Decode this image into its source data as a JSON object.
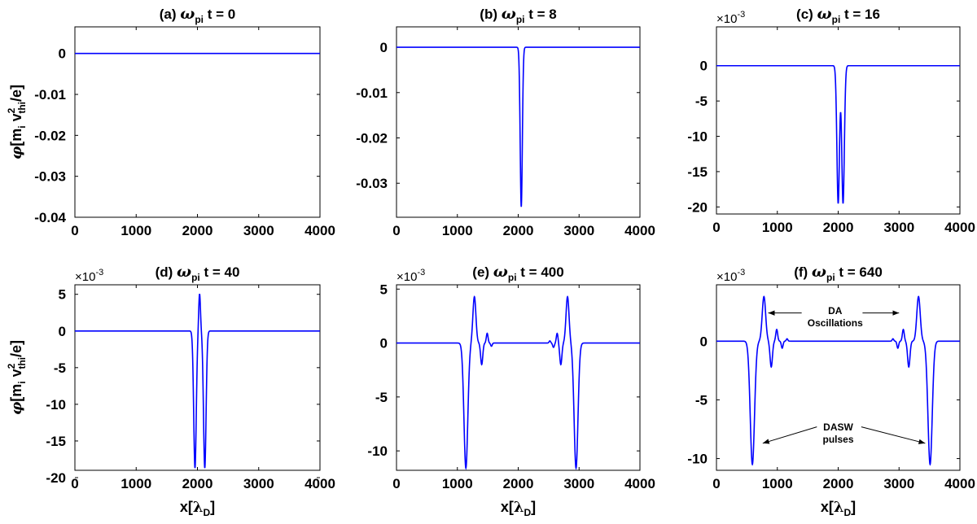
{
  "chart_data": [
    {
      "type": "line",
      "panel": "a",
      "title": "(a) ω_pi t = 0",
      "title_parts": {
        "prefix": "(a) ",
        "symbol": "ω",
        "sub": "pi",
        "suffix": " t = 0"
      },
      "xlim": [
        0,
        4000
      ],
      "ylim": [
        -0.04,
        0.0065
      ],
      "xticks": [
        0,
        1000,
        2000,
        3000,
        4000
      ],
      "yticks": [
        0,
        -0.01,
        -0.02,
        -0.03,
        -0.04
      ],
      "ytick_labels": [
        "0",
        "-0.01",
        "-0.02",
        "-0.03",
        "-0.04"
      ],
      "multiplier": "",
      "ylabel": "φ[m_i v_thi^2/e]",
      "xlabel": "",
      "series": [
        {
          "color": "#0000ff",
          "components": []
        }
      ]
    },
    {
      "type": "line",
      "panel": "b",
      "title": "(b) ω_pi t = 8",
      "title_parts": {
        "prefix": "(b) ",
        "symbol": "ω",
        "sub": "pi",
        "suffix": " t = 8"
      },
      "xlim": [
        0,
        4000
      ],
      "ylim": [
        -0.0375,
        0.0045
      ],
      "xticks": [
        0,
        1000,
        2000,
        3000,
        4000
      ],
      "yticks": [
        0,
        -0.01,
        -0.02,
        -0.03
      ],
      "ytick_labels": [
        "0",
        "-0.01",
        "-0.02",
        "-0.03"
      ],
      "multiplier": "",
      "ylabel": "",
      "xlabel": "",
      "series": [
        {
          "color": "#0000ff",
          "components": [
            [
              2050,
              -0.0352,
              25
            ]
          ]
        }
      ]
    },
    {
      "type": "line",
      "panel": "c",
      "title": "(c) ω_pi t = 16",
      "title_parts": {
        "prefix": "(c) ",
        "symbol": "ω",
        "sub": "pi",
        "suffix": " t = 16"
      },
      "xlim": [
        0,
        4000
      ],
      "ylim": [
        -21,
        5.5
      ],
      "xticks": [
        0,
        1000,
        2000,
        3000,
        4000
      ],
      "yticks": [
        0,
        -5,
        -10,
        -15,
        -20
      ],
      "ytick_labels": [
        "0",
        "-5",
        "-10",
        "-15",
        "-20"
      ],
      "multiplier": "×10⁻³",
      "ylabel": "",
      "xlabel": "",
      "series": [
        {
          "color": "#0000ff",
          "components": [
            [
              2000,
              -19.5,
              30
            ],
            [
              2080,
              -19.5,
              30
            ]
          ]
        }
      ]
    },
    {
      "type": "line",
      "panel": "d",
      "title": "(d) ω_pi t = 40",
      "title_parts": {
        "prefix": "(d) ",
        "symbol": "ω",
        "sub": "pi",
        "suffix": " t = 40"
      },
      "xlim": [
        0,
        4000
      ],
      "ylim": [
        -19,
        6.3
      ],
      "xticks": [
        0,
        1000,
        2000,
        3000,
        4000
      ],
      "yticks": [
        5,
        0,
        -5,
        -10,
        -15,
        -20
      ],
      "ytick_labels": [
        "5",
        "0",
        "-5",
        "-10",
        "-15",
        "-20"
      ],
      "multiplier": "×10⁻³",
      "ylabel": "φ[m_i v_thi^2/e]",
      "xlabel": "x[λ_D]",
      "series": [
        {
          "color": "#0000ff",
          "components": [
            [
              1960,
              -18.7,
              30
            ],
            [
              2035,
              5.1,
              20
            ],
            [
              2120,
              -18.7,
              30
            ]
          ]
        }
      ]
    },
    {
      "type": "line",
      "panel": "e",
      "title": "(e) ω_pi t = 400",
      "title_parts": {
        "prefix": "(e) ",
        "symbol": "ω",
        "sub": "pi",
        "suffix": " t = 400"
      },
      "xlim": [
        0,
        4000
      ],
      "ylim": [
        -11.8,
        5.4
      ],
      "xticks": [
        0,
        1000,
        2000,
        3000,
        4000
      ],
      "yticks": [
        5,
        0,
        -5,
        -10
      ],
      "ytick_labels": [
        "5",
        "0",
        "-5",
        "-10"
      ],
      "multiplier": "×10⁻³",
      "ylabel": "",
      "xlabel": "x[λ_D]",
      "series": [
        {
          "color": "#0000ff",
          "components": [
            [
              1140,
              -11.6,
              45
            ],
            [
              1280,
              4.3,
              35
            ],
            [
              1400,
              -2.0,
              25
            ],
            [
              1490,
              0.9,
              20
            ],
            [
              1560,
              -0.3,
              18
            ],
            [
              2520,
              0.2,
              18
            ],
            [
              2580,
              -0.4,
              20
            ],
            [
              2640,
              0.9,
              20
            ],
            [
              2700,
              -2.0,
              25
            ],
            [
              2810,
              4.3,
              35
            ],
            [
              2950,
              -11.6,
              45
            ]
          ]
        }
      ]
    },
    {
      "type": "line",
      "panel": "f",
      "title": "(f) ω_pi t = 640",
      "title_parts": {
        "prefix": "(f) ",
        "symbol": "ω",
        "sub": "pi",
        "suffix": " t = 640"
      },
      "xlim": [
        0,
        4000
      ],
      "ylim": [
        -11,
        4.8
      ],
      "xticks": [
        0,
        1000,
        2000,
        3000,
        4000
      ],
      "yticks": [
        0,
        -5,
        -10
      ],
      "ytick_labels": [
        "0",
        "-5",
        "-10"
      ],
      "multiplier": "×10⁻³",
      "ylabel": "",
      "xlabel": "x[λ_D]",
      "series": [
        {
          "color": "#0000ff",
          "components": [
            [
              590,
              -10.5,
              50
            ],
            [
              780,
              3.8,
              40
            ],
            [
              900,
              -2.2,
              28
            ],
            [
              990,
              1.0,
              22
            ],
            [
              1080,
              -0.6,
              20
            ],
            [
              1160,
              0.2,
              18
            ],
            [
              2900,
              0.2,
              18
            ],
            [
              2980,
              -0.6,
              20
            ],
            [
              3070,
              1.0,
              22
            ],
            [
              3160,
              -2.2,
              28
            ],
            [
              3320,
              3.8,
              40
            ],
            [
              3510,
              -10.5,
              50
            ]
          ]
        }
      ],
      "annotations": [
        {
          "lines": [
            "DA",
            "Oscillations"
          ],
          "tx": 1950,
          "ty": 2.3,
          "arrows": [
            [
              1400,
              2.4,
              850,
              2.4
            ],
            [
              2400,
              2.4,
              3000,
              2.4
            ]
          ]
        },
        {
          "lines": [
            "DASW",
            "pulses"
          ],
          "tx": 2000,
          "ty": -7.6,
          "arrows": [
            [
              1650,
              -7.3,
              760,
              -8.7
            ],
            [
              2380,
              -7.3,
              3430,
              -8.7
            ]
          ]
        }
      ]
    }
  ]
}
